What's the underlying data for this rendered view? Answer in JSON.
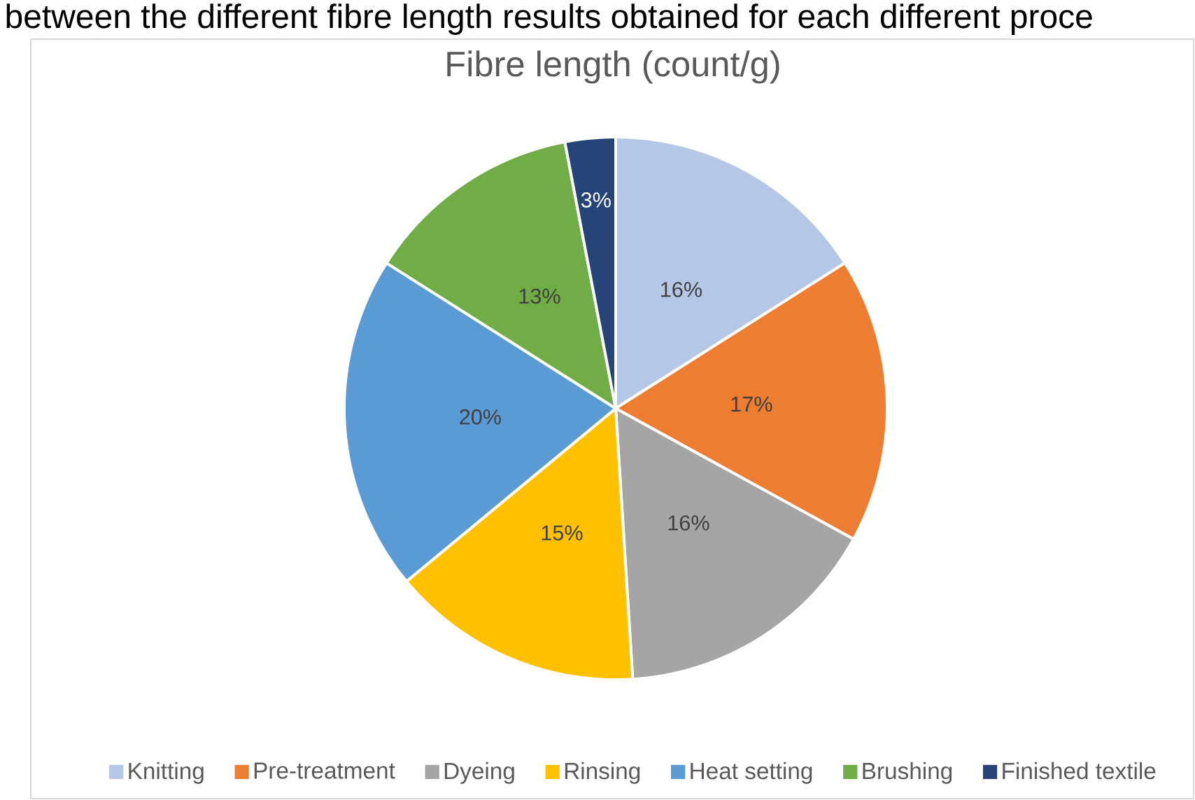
{
  "chart_data": {
    "type": "pie",
    "title": "Fibre length (count/g)",
    "annotations": [
      "between the different fibre length results obtained for each different proce"
    ],
    "categories": [
      "Knitting",
      "Pre-treatment",
      "Dyeing",
      "Rinsing",
      "Heat setting",
      "Brushing",
      "Finished textile"
    ],
    "values": [
      16,
      17,
      16,
      15,
      20,
      13,
      3
    ],
    "colors": [
      "#b4c7e7",
      "#ed7d31",
      "#a5a5a5",
      "#ffc000",
      "#5b9bd5",
      "#70ad47",
      "#264478"
    ],
    "value_labels": [
      "16%",
      "17%",
      "16%",
      "15%",
      "20%",
      "13%",
      "3%"
    ],
    "legend": "bottom"
  }
}
